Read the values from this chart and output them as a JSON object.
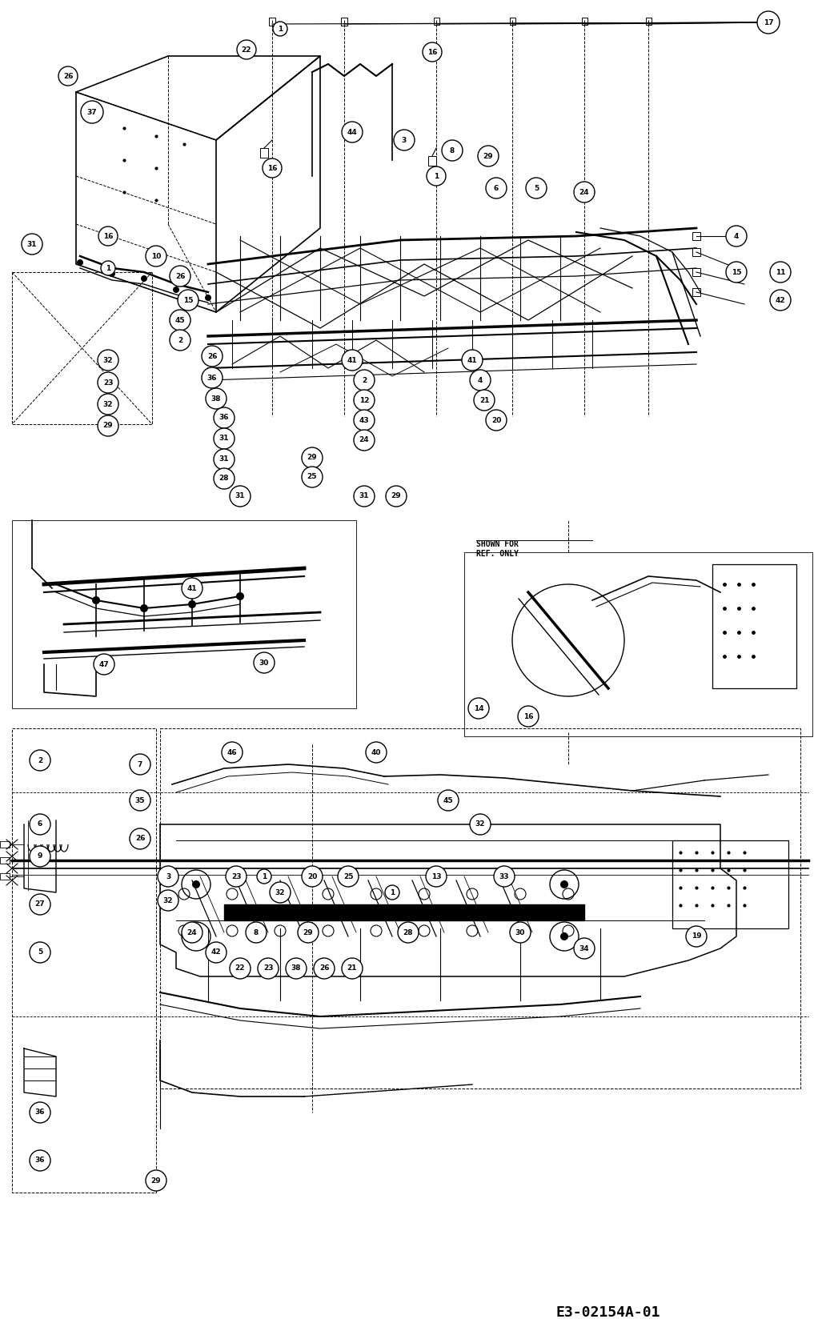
{
  "background_color": "#ffffff",
  "diagram_code": "E3-02154A-01",
  "figsize": [
    10.32,
    16.68
  ],
  "dpi": 100,
  "label_fontsize": 6.5,
  "code_fontsize": 13
}
